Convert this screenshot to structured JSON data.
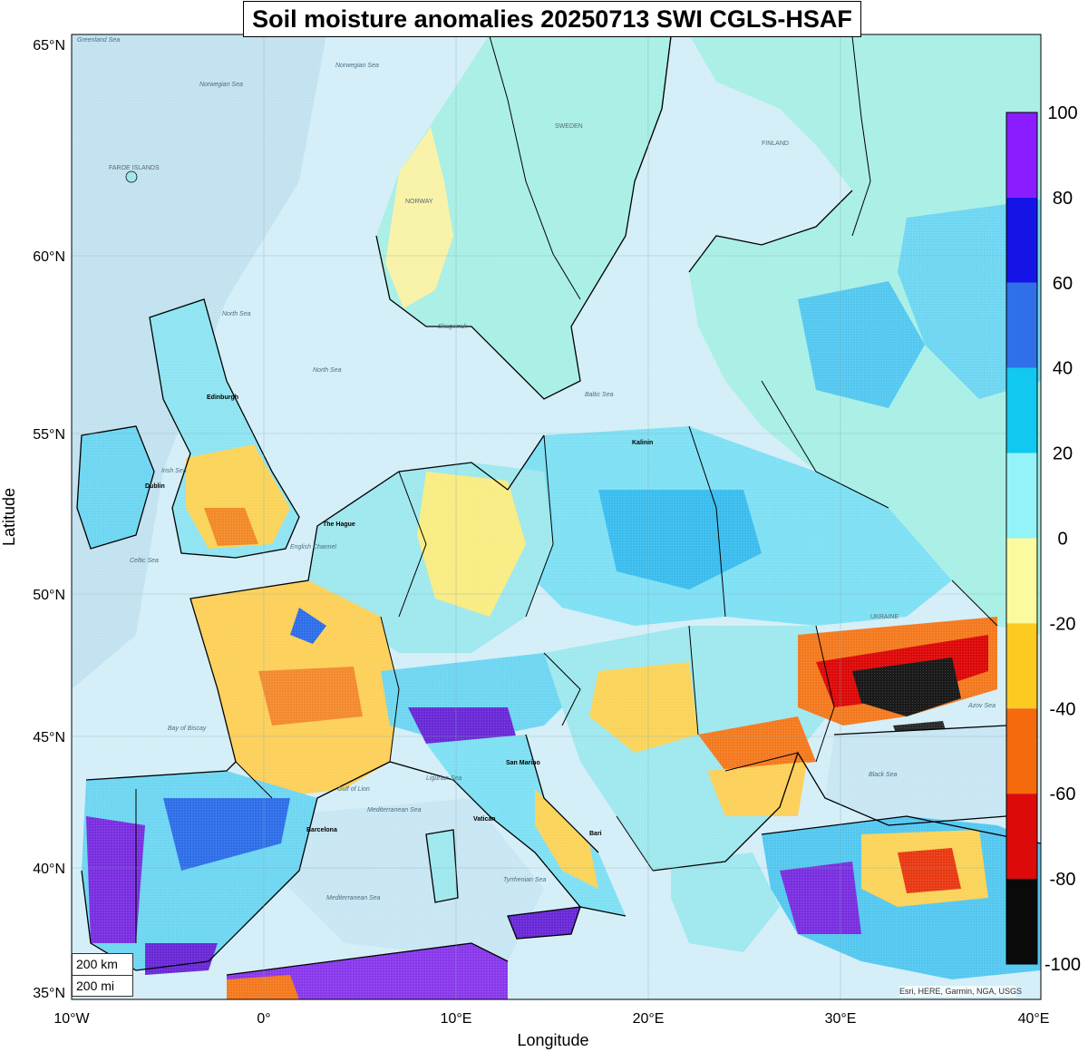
{
  "title": "Soil moisture anomalies 20250713 SWI CGLS-HSAF",
  "xlabel": "Longitude",
  "ylabel": "Latitude",
  "lon_ticks": [
    "10°W",
    "0°",
    "10°E",
    "20°E",
    "30°E",
    "40°E"
  ],
  "lat_ticks": [
    "65°N",
    "60°N",
    "55°N",
    "50°N",
    "45°N",
    "40°N",
    "35°N"
  ],
  "colorbar": {
    "tick_labels": [
      "100",
      "80",
      "60",
      "40",
      "20",
      "0",
      "-20",
      "-40",
      "-60",
      "-80",
      "-100"
    ],
    "range": [
      -100,
      100
    ],
    "bins": [
      {
        "from": 80,
        "to": 100,
        "color": "#8a1cff"
      },
      {
        "from": 60,
        "to": 80,
        "color": "#1414e6"
      },
      {
        "from": 40,
        "to": 60,
        "color": "#2f6fe8"
      },
      {
        "from": 20,
        "to": 40,
        "color": "#10c8f0"
      },
      {
        "from": 0,
        "to": 20,
        "color": "#93f3f8"
      },
      {
        "from": -20,
        "to": 0,
        "color": "#fbfa9e"
      },
      {
        "from": -40,
        "to": -20,
        "color": "#fccb22"
      },
      {
        "from": -60,
        "to": -40,
        "color": "#f46a0c"
      },
      {
        "from": -80,
        "to": -60,
        "color": "#dd0a0a"
      },
      {
        "from": -100,
        "to": -80,
        "color": "#0a0a0a"
      }
    ]
  },
  "scale_bar": {
    "km_label": "200 km",
    "mi_label": "200 mi"
  },
  "attribution": "Esri, HERE, Garmin, NGA, USGS",
  "place_labels": {
    "norwegian_sea": "Norwegian Sea",
    "greenland_sea": "Greenland Sea",
    "north_sea_1": "North Sea",
    "north_sea_2": "North Sea",
    "faroe": "FAROE ISLANDS",
    "norway": "NORWAY",
    "sweden": "SWEDEN",
    "finland": "FINLAND",
    "ukraine": "UKRAINE",
    "baltic_sea": "Baltic Sea",
    "black_sea": "Black Sea",
    "bay_of_biscay": "Bay of Biscay",
    "mediterranean_1": "Mediterranean Sea",
    "mediterranean_2": "Mediterranean Sea",
    "the_hague": "The Hague",
    "edinburgh": "Edinburgh",
    "dublin": "Dublin",
    "kaliningrad": "Kalinin",
    "san_marino": "San Marino",
    "vatican": "Vatican",
    "barcelona": "Barcelona",
    "bari": "Bari",
    "azov_sea": "Azov Sea",
    "gulf_of_lion": "Gulf of Lion",
    "ligurian_sea": "Ligurian Sea",
    "tyrrhenian_sea": "Tyrrhenian Sea",
    "skagerrak": "Skagerrak",
    "irish_sea": "Irish Sea",
    "celtic_sea": "Celtic Sea",
    "english_channel": "English Channel"
  }
}
